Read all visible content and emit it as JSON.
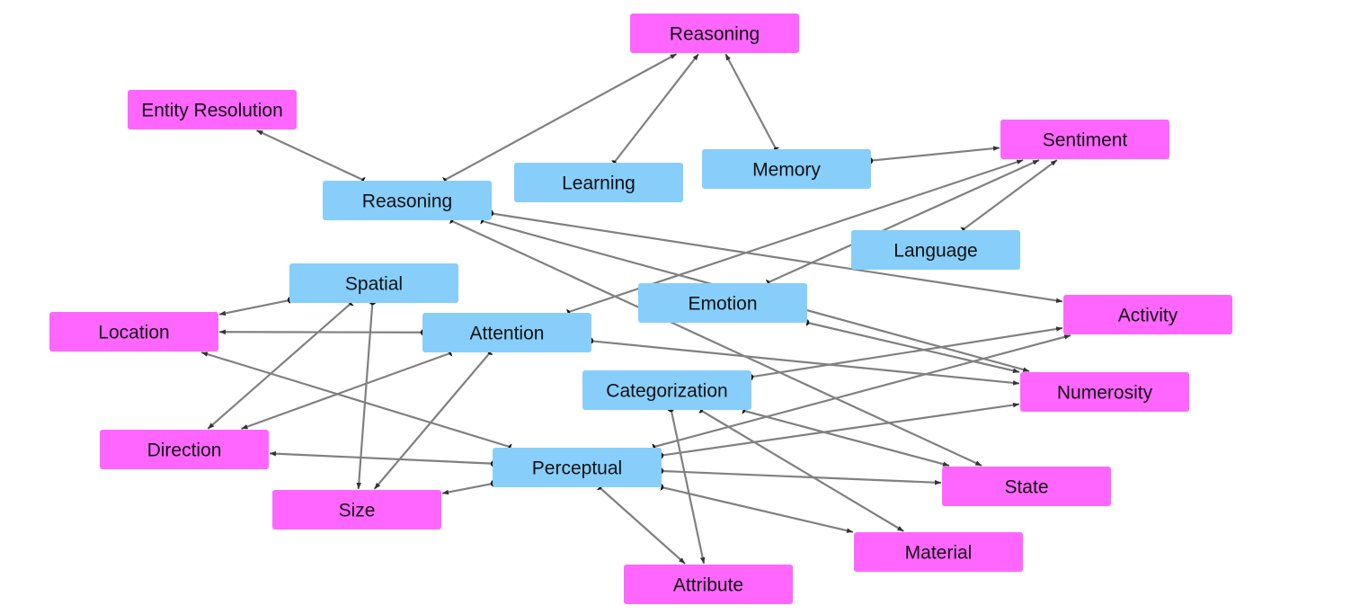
{
  "colors": {
    "category": "#ff66ff",
    "skill": "#87cefa",
    "edge": "#808080"
  },
  "nodes": [
    {
      "id": "reasoning_top",
      "label": "Reasoning",
      "kind": "category"
    },
    {
      "id": "entity_resolution",
      "label": "Entity Resolution",
      "kind": "category"
    },
    {
      "id": "sentiment",
      "label": "Sentiment",
      "kind": "category"
    },
    {
      "id": "activity",
      "label": "Activity",
      "kind": "category"
    },
    {
      "id": "location",
      "label": "Location",
      "kind": "category"
    },
    {
      "id": "numerosity",
      "label": "Numerosity",
      "kind": "category"
    },
    {
      "id": "direction",
      "label": "Direction",
      "kind": "category"
    },
    {
      "id": "state",
      "label": "State",
      "kind": "category"
    },
    {
      "id": "size",
      "label": "Size",
      "kind": "category"
    },
    {
      "id": "material",
      "label": "Material",
      "kind": "category"
    },
    {
      "id": "attribute",
      "label": "Attribute",
      "kind": "category"
    },
    {
      "id": "reasoning",
      "label": "Reasoning",
      "kind": "skill"
    },
    {
      "id": "learning",
      "label": "Learning",
      "kind": "skill"
    },
    {
      "id": "memory",
      "label": "Memory",
      "kind": "skill"
    },
    {
      "id": "language",
      "label": "Language",
      "kind": "skill"
    },
    {
      "id": "spatial",
      "label": "Spatial",
      "kind": "skill"
    },
    {
      "id": "emotion",
      "label": "Emotion",
      "kind": "skill"
    },
    {
      "id": "attention",
      "label": "Attention",
      "kind": "skill"
    },
    {
      "id": "categorization",
      "label": "Categorization",
      "kind": "skill"
    },
    {
      "id": "perceptual",
      "label": "Perceptual",
      "kind": "skill"
    }
  ],
  "edges": [
    [
      "reasoning",
      "reasoning_top"
    ],
    [
      "learning",
      "reasoning_top"
    ],
    [
      "memory",
      "reasoning_top"
    ],
    [
      "reasoning",
      "entity_resolution"
    ],
    [
      "memory",
      "sentiment"
    ],
    [
      "language",
      "sentiment"
    ],
    [
      "emotion",
      "sentiment"
    ],
    [
      "attention",
      "sentiment"
    ],
    [
      "reasoning",
      "activity"
    ],
    [
      "reasoning",
      "numerosity"
    ],
    [
      "reasoning",
      "state"
    ],
    [
      "spatial",
      "location"
    ],
    [
      "spatial",
      "direction"
    ],
    [
      "spatial",
      "size"
    ],
    [
      "attention",
      "location"
    ],
    [
      "attention",
      "direction"
    ],
    [
      "attention",
      "size"
    ],
    [
      "attention",
      "numerosity"
    ],
    [
      "emotion",
      "numerosity"
    ],
    [
      "categorization",
      "activity"
    ],
    [
      "categorization",
      "state"
    ],
    [
      "categorization",
      "material"
    ],
    [
      "categorization",
      "attribute"
    ],
    [
      "perceptual",
      "location"
    ],
    [
      "perceptual",
      "direction"
    ],
    [
      "perceptual",
      "size"
    ],
    [
      "perceptual",
      "activity"
    ],
    [
      "perceptual",
      "numerosity"
    ],
    [
      "perceptual",
      "state"
    ],
    [
      "perceptual",
      "material"
    ],
    [
      "perceptual",
      "attribute"
    ]
  ]
}
